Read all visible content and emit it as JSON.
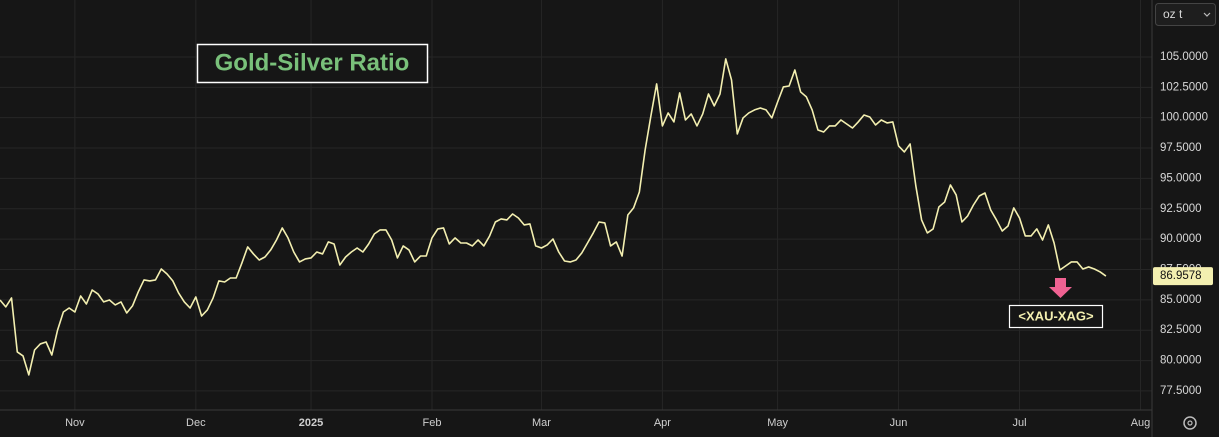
{
  "chart_data": {
    "type": "line",
    "title": "Gold-Silver Ratio",
    "annotation": "<XAU-XAG>",
    "unit_selector": "oz t",
    "series": [
      {
        "name": "XAU-XAG",
        "color": "#f3efb0",
        "values": [
          84.99,
          84.42,
          85.16,
          80.71,
          80.38,
          78.82,
          80.87,
          81.37,
          81.53,
          80.46,
          82.52,
          84.0,
          84.33,
          84.0,
          85.32,
          84.66,
          85.81,
          85.49,
          84.83,
          84.99,
          84.58,
          84.83,
          83.92,
          84.5,
          85.65,
          86.64,
          86.56,
          86.64,
          87.54,
          87.13,
          86.56,
          85.57,
          84.83,
          84.33,
          85.24,
          83.67,
          84.17,
          85.16,
          86.56,
          86.47,
          86.8,
          86.8,
          88.04,
          89.36,
          88.78,
          88.28,
          88.53,
          89.11,
          89.93,
          90.92,
          90.1,
          88.94,
          88.12,
          88.37,
          88.45,
          88.94,
          88.78,
          89.77,
          89.6,
          87.87,
          88.53,
          88.94,
          89.27,
          88.94,
          89.6,
          90.43,
          90.76,
          90.76,
          89.93,
          88.45,
          89.44,
          89.11,
          88.12,
          88.61,
          88.61,
          90.1,
          90.84,
          90.92,
          89.6,
          90.1,
          89.68,
          89.68,
          89.44,
          89.93,
          89.44,
          90.26,
          91.41,
          91.66,
          91.58,
          92.07,
          91.74,
          91.17,
          91.25,
          89.44,
          89.27,
          89.52,
          90.01,
          88.94,
          88.2,
          88.12,
          88.28,
          88.86,
          89.68,
          90.51,
          91.41,
          91.33,
          89.44,
          89.77,
          88.61,
          91.99,
          92.57,
          93.88,
          97.34,
          100.14,
          102.78,
          99.32,
          100.39,
          99.65,
          102.04,
          99.81,
          100.31,
          99.32,
          100.31,
          101.95,
          100.97,
          101.95,
          104.84,
          103.11,
          98.66,
          99.98,
          100.39,
          100.64,
          100.8,
          100.64,
          99.98,
          101.29,
          102.53,
          102.61,
          103.93,
          102.12,
          101.71,
          100.64,
          98.99,
          98.82,
          99.32,
          99.32,
          99.81,
          99.48,
          99.15,
          99.65,
          100.22,
          100.06,
          99.4,
          99.81,
          99.57,
          99.65,
          97.67,
          97.18,
          97.84,
          94.38,
          91.58,
          90.51,
          90.84,
          92.65,
          93.06,
          94.46,
          93.64,
          91.41,
          91.91,
          92.81,
          93.55,
          93.8,
          92.4,
          91.58,
          90.67,
          91.08,
          92.57,
          91.74,
          90.26,
          90.26,
          90.84,
          89.93,
          91.17,
          89.68,
          87.46,
          87.79,
          88.12,
          88.12,
          87.54,
          87.71,
          87.54,
          87.3,
          86.9578
        ]
      }
    ],
    "xlim": [
      0,
      200
    ],
    "xticks": [
      {
        "value": 13,
        "label": "Nov"
      },
      {
        "value": 34,
        "label": "Dec"
      },
      {
        "value": 54,
        "label": "2025"
      },
      {
        "value": 75,
        "label": "Feb"
      },
      {
        "value": 94,
        "label": "Mar"
      },
      {
        "value": 115,
        "label": "Apr"
      },
      {
        "value": 135,
        "label": "May"
      },
      {
        "value": 156,
        "label": "Jun"
      },
      {
        "value": 177,
        "label": "Jul"
      },
      {
        "value": 198,
        "label": "Aug"
      }
    ],
    "ylim": [
      75.93,
      109.69
    ],
    "yticks": [
      {
        "value": 77.5,
        "label": "77.5000"
      },
      {
        "value": 80,
        "label": "80.0000"
      },
      {
        "value": 82.5,
        "label": "82.5000"
      },
      {
        "value": 85,
        "label": "85.0000"
      },
      {
        "value": 87.5,
        "label": "87.5000"
      },
      {
        "value": 90,
        "label": "90.0000"
      },
      {
        "value": 92.5,
        "label": "92.5000"
      },
      {
        "value": 95,
        "label": "95.0000"
      },
      {
        "value": 97.5,
        "label": "97.5000"
      },
      {
        "value": 100,
        "label": "100.0000"
      },
      {
        "value": 102.5,
        "label": "102.5000"
      },
      {
        "value": 105,
        "label": "105.0000"
      }
    ],
    "grid": true
  }
}
